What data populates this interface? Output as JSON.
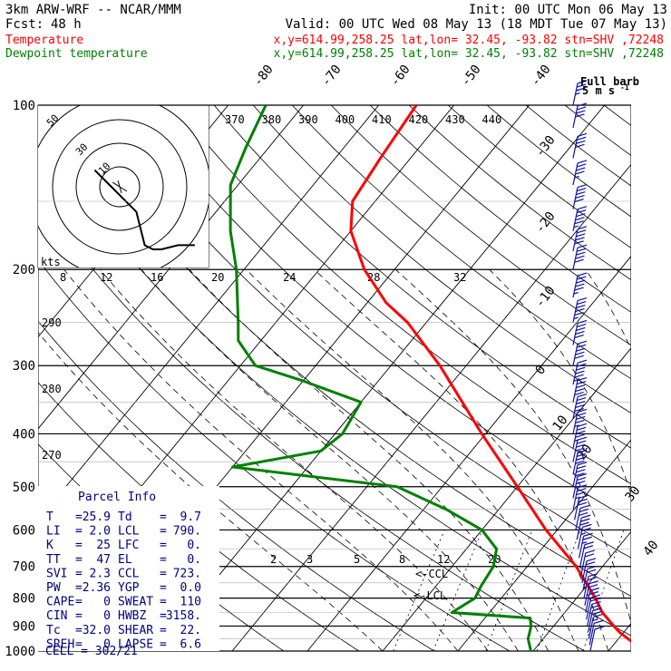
{
  "header": {
    "title": "3km ARW-WRF -- NCAR/MMM",
    "init": "Init: 00 UTC Mon 06 May 13",
    "fcst_label": "Fcst:",
    "fcst_value": "48 h",
    "valid": "Valid: 00 UTC Wed 08 May 13 (18 MDT Tue 07 May 13)",
    "temp_legend": "Temperature",
    "temp_info": "x,y=614.99,258.25   lat,lon= 32.45, -93.82  stn=SHV ,72248",
    "dew_legend": "Dewpoint temperature",
    "dew_info": "x,y=614.99,258.25   lat,lon= 32.45, -93.82  stn=SHV ,72248"
  },
  "colors": {
    "temperature": "#ff0000",
    "dewpoint": "#008000",
    "barbs": "#1010a0",
    "parcel": "#000080",
    "hodo": "#000000",
    "grid": "#000000"
  },
  "barb_legend": {
    "line1": "Full barb",
    "line2": "5 m s",
    "sup": "-1"
  },
  "parcel": {
    "title": "Parcel Info",
    "rows": [
      [
        "T",
        "25.9",
        "Td",
        "9.7"
      ],
      [
        "LI",
        "2.0",
        "LCL",
        "790."
      ],
      [
        "K",
        "25",
        "LFC",
        "0."
      ],
      [
        "TT",
        "47",
        "EL",
        "0."
      ],
      [
        "SVI",
        "2.3",
        "CCL",
        "723."
      ],
      [
        "PW",
        "2.36",
        "YGP",
        "0.0"
      ],
      [
        "CAPE",
        "0",
        "SWEAT",
        "110"
      ],
      [
        "CIN",
        "0",
        "HWBZ",
        "3158."
      ],
      [
        "Tc",
        "32.0",
        "SHEAR",
        "22."
      ],
      [
        "SREH",
        "0",
        "LAPSE",
        "6.6"
      ]
    ],
    "cell": "CELL = 302/21"
  },
  "markers": {
    "ccl": "<-CCL",
    "lcl": "<-LCL"
  },
  "hodograph": {
    "kts_label": "kts",
    "ring_labels": [
      "50",
      "30",
      "10"
    ],
    "path_uv": [
      [
        -6,
        4
      ],
      [
        -4,
        2
      ],
      [
        -2,
        0
      ],
      [
        0,
        -2
      ],
      [
        2,
        -4
      ],
      [
        4,
        -6
      ],
      [
        5,
        -10
      ],
      [
        6,
        -14
      ],
      [
        8,
        -15
      ],
      [
        10,
        -15
      ],
      [
        14,
        -14
      ],
      [
        16,
        -14
      ],
      [
        18,
        -14
      ]
    ]
  },
  "chart_data": {
    "type": "line",
    "title": "",
    "xlabel": "",
    "ylabel": "",
    "pressure_levels": [
      1000,
      900,
      800,
      700,
      600,
      500,
      400,
      300,
      200,
      100
    ],
    "pressure_labels": [
      "1000",
      "900",
      "800",
      "700",
      "600",
      "500",
      "400",
      "300",
      "200",
      "100"
    ],
    "ylim": [
      1000,
      100
    ],
    "y_scale": "log",
    "xlim": [
      -40,
      45
    ],
    "temperature_axis_labels": [
      "-80",
      "-70",
      "-60",
      "-50",
      "-40",
      "-30",
      "-20",
      "-10",
      "0",
      "10",
      "20",
      "30",
      "40"
    ],
    "theta_labels": [
      "370",
      "380",
      "390",
      "400",
      "410",
      "420",
      "430",
      "440"
    ],
    "theta_left_labels": [
      "290",
      "280",
      "270"
    ],
    "mixing_ratio_labels": [
      "8",
      "12",
      "16",
      "20",
      "24",
      "28",
      "32"
    ],
    "mixing_ratio_labels_low": [
      "2",
      "3",
      "5",
      "8",
      "12",
      "20"
    ],
    "series": [
      {
        "name": "Temperature",
        "pressure": [
          1000,
          960,
          925,
          900,
          850,
          800,
          700,
          600,
          500,
          400,
          300,
          250,
          230,
          200,
          170,
          150,
          125,
          100
        ],
        "values": [
          25.9,
          22.0,
          19.5,
          18.0,
          15.0,
          12.5,
          6.5,
          -1.5,
          -10.0,
          -20.5,
          -33.5,
          -42.5,
          -47.5,
          -54.0,
          -60.0,
          -63.0,
          -64.0,
          -65.0
        ]
      },
      {
        "name": "Dewpoint temperature",
        "pressure": [
          1000,
          950,
          900,
          870,
          850,
          800,
          760,
          700,
          650,
          600,
          550,
          500,
          460,
          430,
          400,
          350,
          320,
          300,
          270,
          250,
          200,
          170,
          140,
          120,
          100
        ],
        "values": [
          9.7,
          8.0,
          7.0,
          6.0,
          -5.0,
          -3.5,
          -4.0,
          -4.5,
          -6.0,
          -10.0,
          -17.0,
          -26.0,
          -50.0,
          -40.0,
          -39.0,
          -40.0,
          -50.0,
          -58.0,
          -63.0,
          -65.0,
          -71.0,
          -76.0,
          -81.0,
          -83.0,
          -85.0
        ]
      }
    ],
    "wind_barbs": {
      "pressure": [
        1000,
        975,
        950,
        925,
        900,
        875,
        850,
        825,
        800,
        775,
        750,
        725,
        700,
        675,
        650,
        625,
        600,
        575,
        550,
        525,
        500,
        475,
        450,
        425,
        400,
        375,
        350,
        325,
        300,
        275,
        250,
        225,
        200,
        185,
        170,
        155,
        140,
        125,
        110,
        100
      ],
      "speed_ms": [
        5,
        6,
        8,
        10,
        12,
        12,
        11,
        10,
        10,
        10,
        10,
        11,
        12,
        13,
        14,
        15,
        16,
        17,
        18,
        19,
        20,
        21,
        22,
        23,
        24,
        25,
        26,
        28,
        30,
        32,
        34,
        33,
        32,
        30,
        28,
        26,
        24,
        22,
        20,
        18
      ],
      "direction_deg": [
        180,
        190,
        200,
        210,
        220,
        230,
        240,
        250,
        255,
        260,
        265,
        265,
        265,
        265,
        265,
        265,
        265,
        265,
        265,
        265,
        265,
        265,
        265,
        265,
        265,
        265,
        265,
        265,
        265,
        265,
        265,
        265,
        265,
        265,
        265,
        265,
        265,
        265,
        265,
        265
      ]
    }
  }
}
